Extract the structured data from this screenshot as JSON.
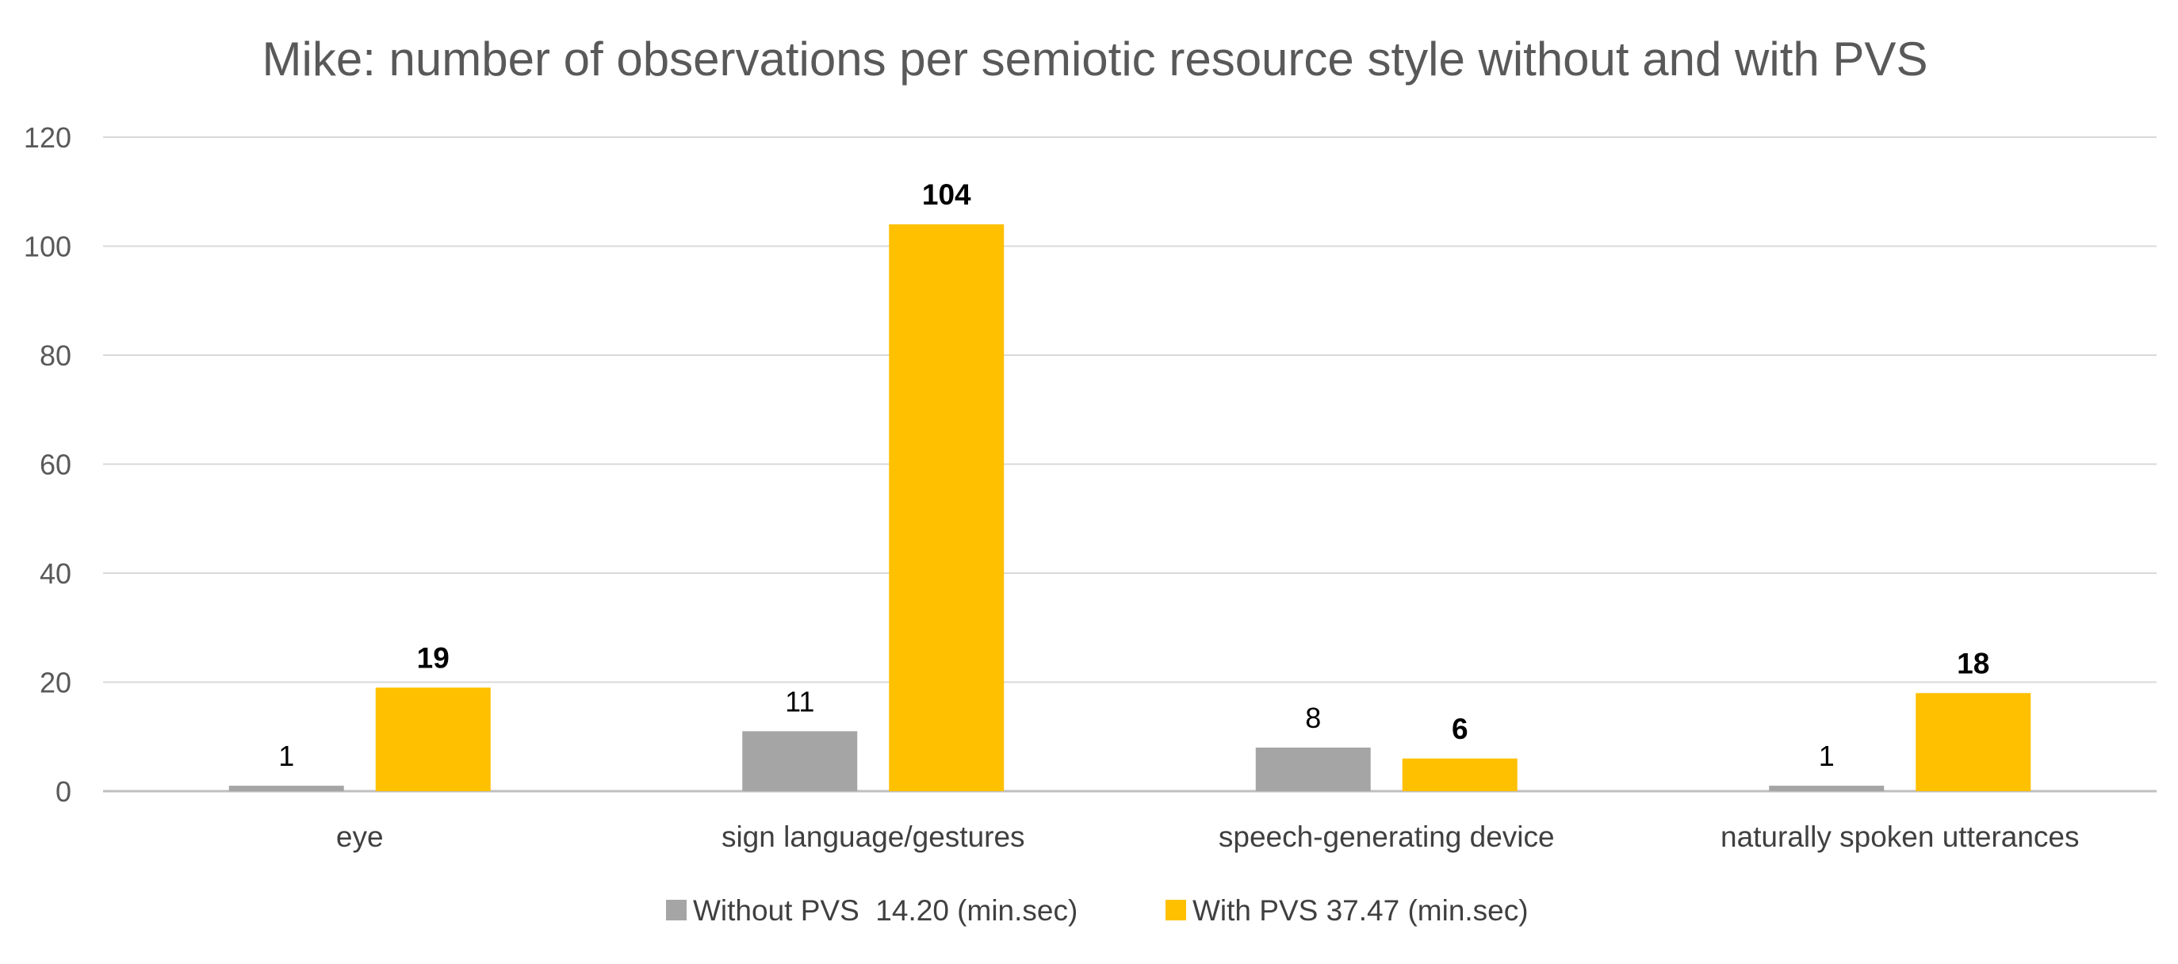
{
  "chart_data": {
    "type": "bar",
    "title": "Mike: number of observations per semiotic resource style without and with PVS",
    "xlabel": "",
    "ylabel": "",
    "categories": [
      "eye",
      "sign language/gestures",
      "speech-generating device",
      "naturally spoken utterances"
    ],
    "series": [
      {
        "name": "Without PVS  14.20 (min.sec)",
        "values": [
          1,
          11,
          8,
          1
        ],
        "color": "#A5A5A5",
        "label_weight": "regular"
      },
      {
        "name": "With PVS 37.47 (min.sec)",
        "values": [
          19,
          104,
          6,
          18
        ],
        "color": "#FFC000",
        "label_weight": "bold"
      }
    ],
    "ylim": [
      0,
      120
    ],
    "yticks": [
      0,
      20,
      40,
      60,
      80,
      100,
      120
    ],
    "grid": true,
    "legend_position": "bottom",
    "data_labels": true
  },
  "colors": {
    "gridline": "#D9D9D9",
    "axis": "#BFBFBF",
    "text": "#595959"
  }
}
